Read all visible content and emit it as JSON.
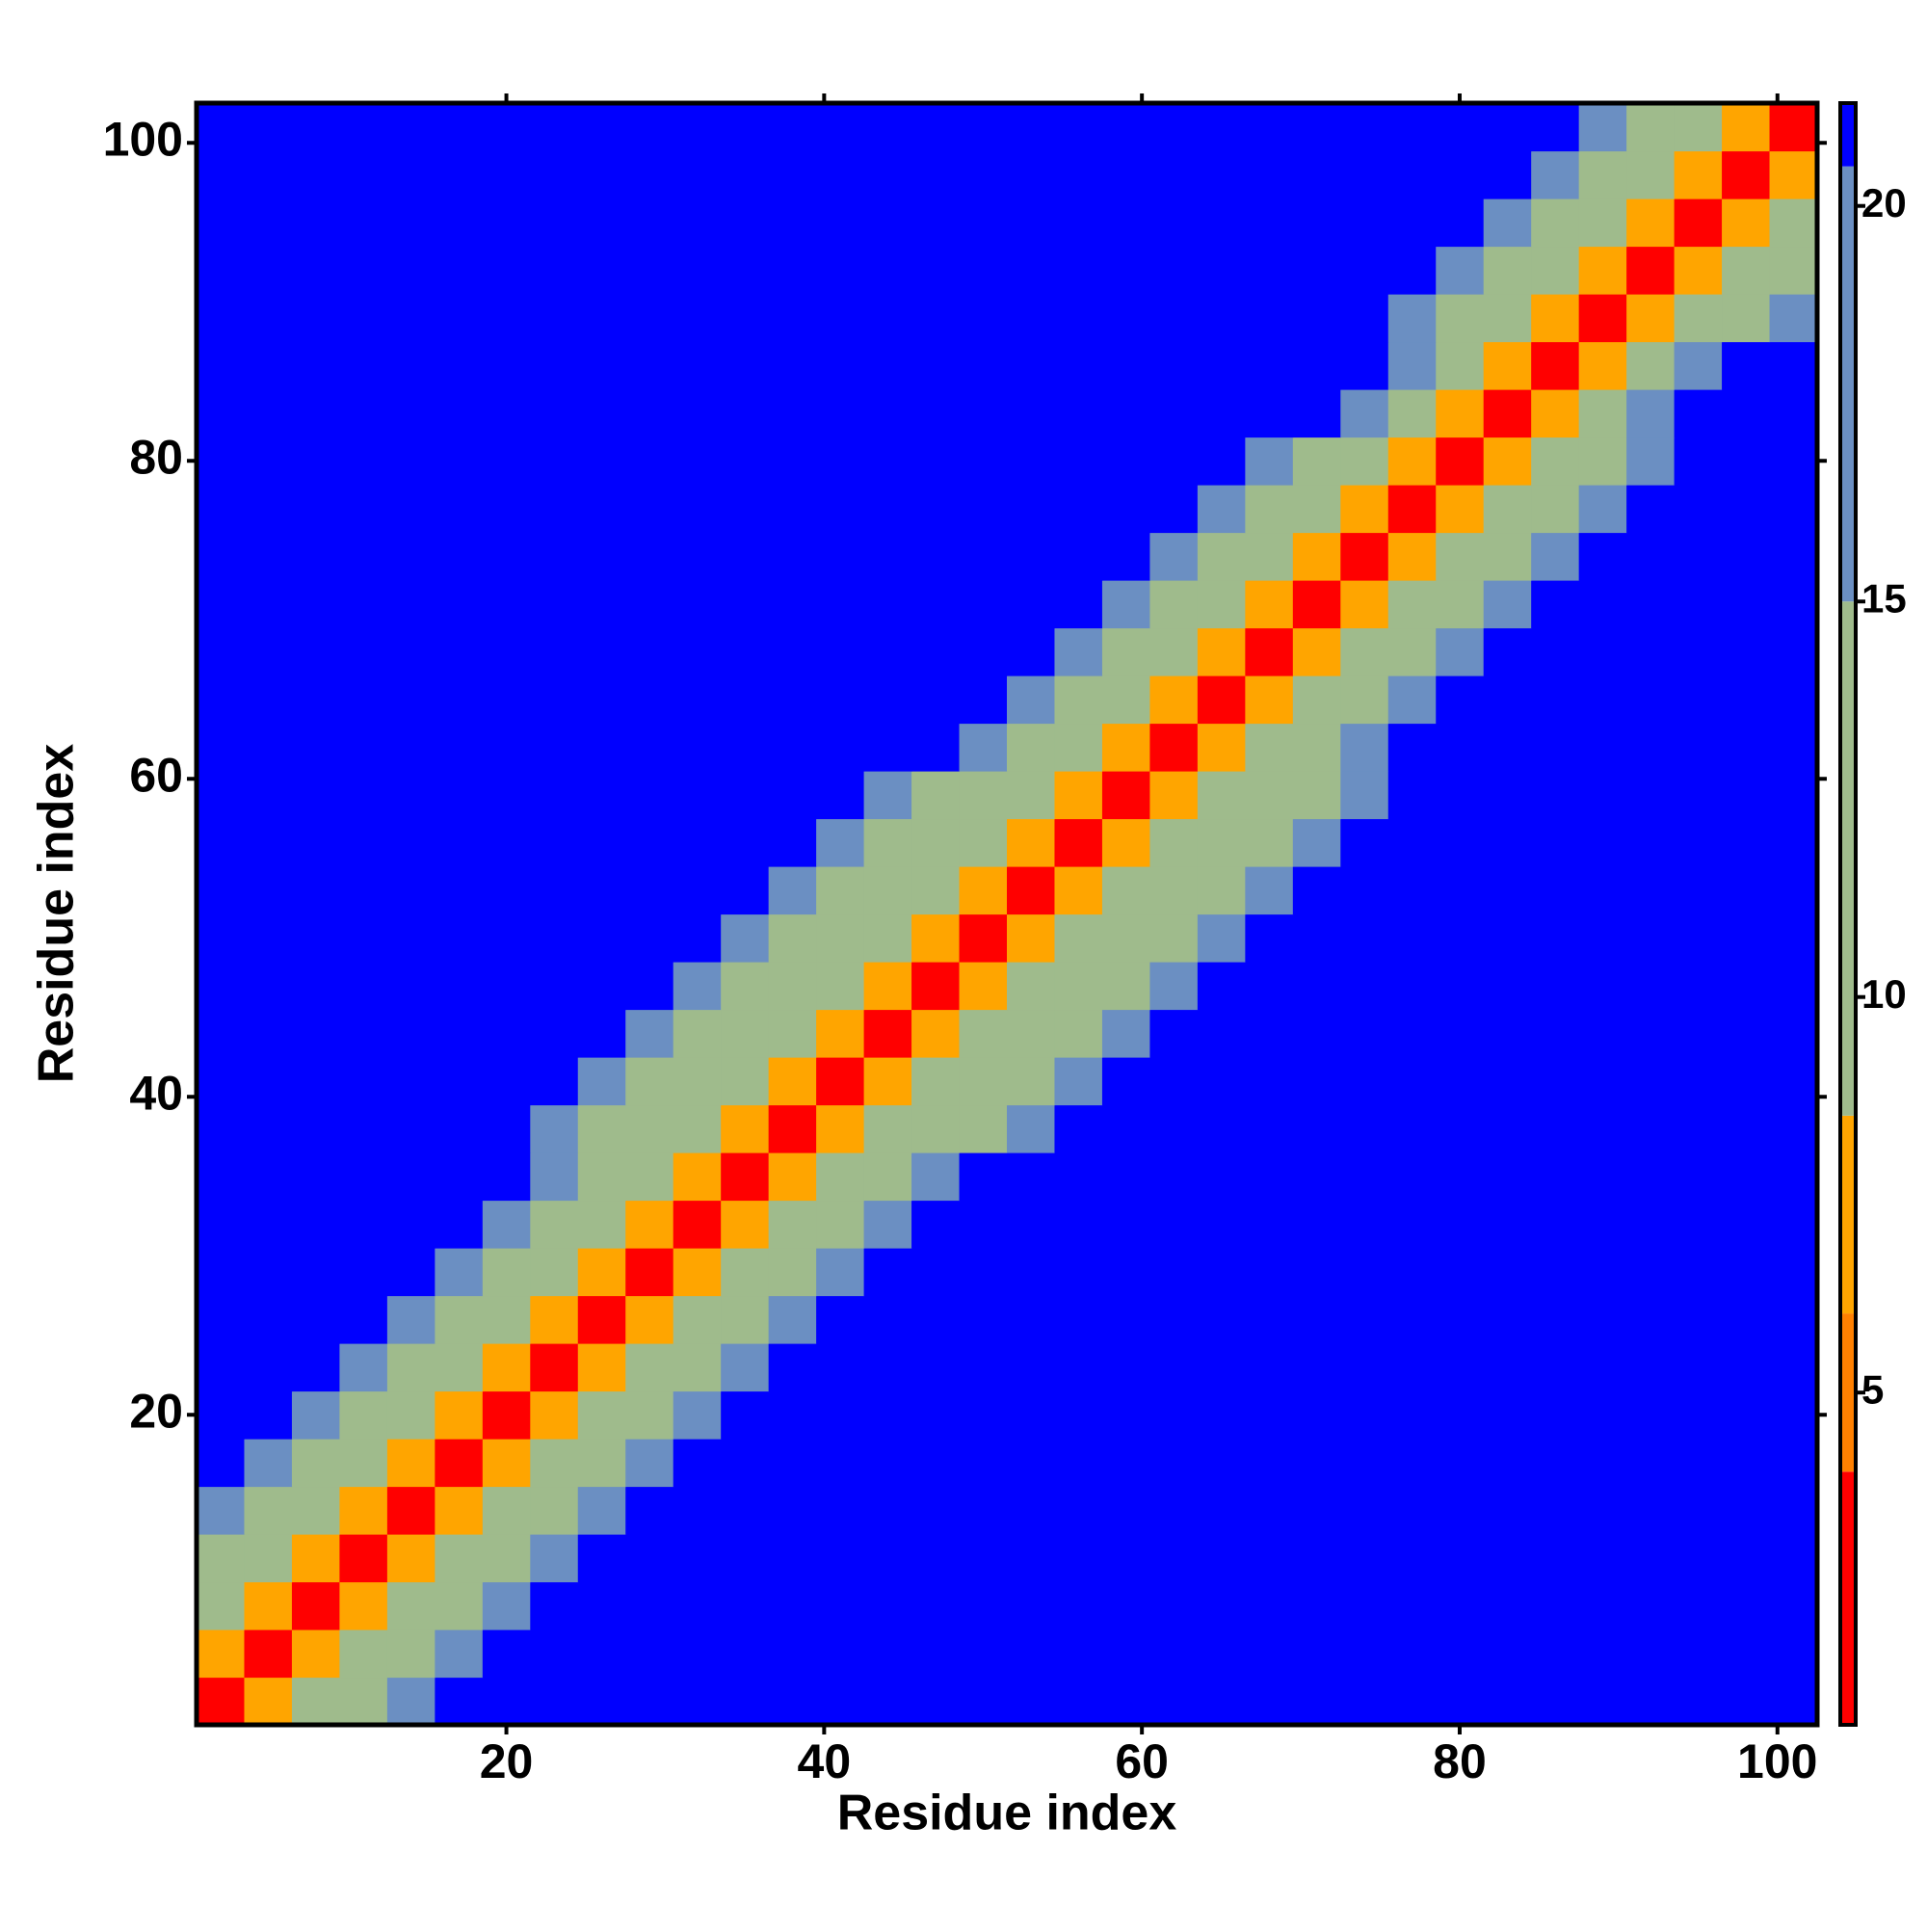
{
  "chart_data": {
    "type": "heatmap",
    "x_label": "Residue index",
    "y_label": "Residue index",
    "x": [
      2,
      5,
      8,
      11,
      14,
      17,
      20,
      23,
      26,
      29,
      32,
      35,
      38,
      41,
      44,
      47,
      50,
      53,
      56,
      59,
      62,
      65,
      68,
      71,
      74,
      77,
      80,
      83,
      86,
      89,
      92,
      95,
      98,
      101
    ],
    "y": [
      2,
      5,
      8,
      11,
      14,
      17,
      20,
      23,
      26,
      29,
      32,
      35,
      38,
      41,
      44,
      47,
      50,
      53,
      56,
      59,
      62,
      65,
      68,
      71,
      74,
      77,
      80,
      83,
      86,
      89,
      92,
      95,
      98,
      101
    ],
    "xlim": [
      0.5,
      102.5
    ],
    "ylim": [
      0.5,
      102.5
    ],
    "xticks": [
      20,
      40,
      60,
      80,
      100
    ],
    "yticks": [
      20,
      40,
      60,
      80,
      100
    ],
    "zlim": [
      0.8,
      21.3
    ],
    "zticks": [
      5,
      10,
      15,
      20
    ],
    "colorscale": [
      {
        "from": 0.8,
        "color": "#ff0000"
      },
      {
        "from": 4,
        "color": "#ff8000"
      },
      {
        "from": 6,
        "color": "#ffa500"
      },
      {
        "from": 8.5,
        "color": "#9fbb8c"
      },
      {
        "from": 15,
        "color": "#6b8fc2"
      },
      {
        "from": 20.5,
        "color": "#0000ff"
      }
    ],
    "z": [
      [
        2,
        6,
        10,
        13,
        17,
        22,
        22,
        22,
        22,
        22,
        22,
        22,
        22,
        22,
        22,
        22,
        22,
        22,
        22,
        22,
        22,
        22,
        22,
        22,
        22,
        22,
        22,
        22,
        22,
        22,
        22,
        22,
        22,
        22
      ],
      [
        6,
        2,
        6,
        10,
        13,
        17,
        22,
        22,
        22,
        22,
        22,
        22,
        22,
        22,
        22,
        22,
        22,
        22,
        22,
        22,
        22,
        22,
        22,
        22,
        22,
        22,
        22,
        22,
        22,
        22,
        22,
        22,
        22,
        22
      ],
      [
        10,
        6,
        2,
        6,
        10,
        13,
        17,
        22,
        22,
        22,
        22,
        22,
        22,
        22,
        22,
        22,
        22,
        22,
        22,
        22,
        22,
        22,
        22,
        22,
        22,
        22,
        22,
        22,
        22,
        22,
        22,
        22,
        22,
        22
      ],
      [
        13,
        10,
        6,
        2,
        6,
        10,
        13,
        17,
        22,
        22,
        22,
        22,
        22,
        22,
        22,
        22,
        22,
        22,
        22,
        22,
        22,
        22,
        22,
        22,
        22,
        22,
        22,
        22,
        22,
        22,
        22,
        22,
        22,
        22
      ],
      [
        17,
        13,
        10,
        6,
        2,
        6,
        10,
        13,
        17,
        22,
        22,
        22,
        22,
        22,
        22,
        22,
        22,
        22,
        22,
        22,
        22,
        22,
        22,
        22,
        22,
        22,
        22,
        22,
        22,
        22,
        22,
        22,
        22,
        22
      ],
      [
        22,
        17,
        13,
        10,
        6,
        2,
        6,
        10,
        13,
        17,
        22,
        22,
        22,
        22,
        22,
        22,
        22,
        22,
        22,
        22,
        22,
        22,
        22,
        22,
        22,
        22,
        22,
        22,
        22,
        22,
        22,
        22,
        22,
        22
      ],
      [
        22,
        22,
        17,
        13,
        10,
        6,
        2,
        6,
        10,
        13,
        17,
        22,
        22,
        22,
        22,
        22,
        22,
        22,
        22,
        22,
        22,
        22,
        22,
        22,
        22,
        22,
        22,
        22,
        22,
        22,
        22,
        22,
        22,
        22
      ],
      [
        22,
        22,
        22,
        17,
        13,
        10,
        6,
        2,
        6,
        10,
        13,
        17,
        22,
        22,
        22,
        22,
        22,
        22,
        22,
        22,
        22,
        22,
        22,
        22,
        22,
        22,
        22,
        22,
        22,
        22,
        22,
        22,
        22,
        22
      ],
      [
        22,
        22,
        22,
        22,
        17,
        13,
        10,
        6,
        2,
        6,
        10,
        13,
        17,
        22,
        22,
        22,
        22,
        22,
        22,
        22,
        22,
        22,
        22,
        22,
        22,
        22,
        22,
        22,
        22,
        22,
        22,
        22,
        22,
        22
      ],
      [
        22,
        22,
        22,
        22,
        22,
        17,
        13,
        10,
        6,
        2,
        6,
        10,
        13,
        17,
        22,
        22,
        22,
        22,
        22,
        22,
        22,
        22,
        22,
        22,
        22,
        22,
        22,
        22,
        22,
        22,
        22,
        22,
        22,
        22
      ],
      [
        22,
        22,
        22,
        22,
        22,
        22,
        17,
        13,
        10,
        6,
        2,
        6,
        10,
        13,
        17,
        22,
        22,
        22,
        22,
        22,
        22,
        22,
        22,
        22,
        22,
        22,
        22,
        22,
        22,
        22,
        22,
        22,
        22,
        22
      ],
      [
        22,
        22,
        22,
        22,
        22,
        22,
        22,
        17,
        13,
        10,
        6,
        2,
        6,
        10,
        13,
        17,
        22,
        22,
        22,
        22,
        22,
        22,
        22,
        22,
        22,
        22,
        22,
        22,
        22,
        22,
        22,
        22,
        22,
        22
      ],
      [
        22,
        22,
        22,
        22,
        22,
        22,
        22,
        17,
        14,
        12,
        9,
        6,
        2,
        6,
        9,
        12,
        14,
        17,
        22,
        22,
        22,
        22,
        22,
        22,
        22,
        22,
        22,
        22,
        22,
        22,
        22,
        22,
        22,
        22
      ],
      [
        22,
        22,
        22,
        22,
        22,
        22,
        22,
        22,
        17,
        14,
        12,
        9,
        6,
        2,
        6,
        9,
        12,
        14,
        17,
        22,
        22,
        22,
        22,
        22,
        22,
        22,
        22,
        22,
        22,
        22,
        22,
        22,
        22,
        22
      ],
      [
        22,
        22,
        22,
        22,
        22,
        22,
        22,
        22,
        22,
        17,
        14,
        12,
        9,
        6,
        2,
        6,
        9,
        12,
        14,
        17,
        22,
        22,
        22,
        22,
        22,
        22,
        22,
        22,
        22,
        22,
        22,
        22,
        22,
        22
      ],
      [
        22,
        22,
        22,
        22,
        22,
        22,
        22,
        22,
        22,
        22,
        17,
        14,
        12,
        9,
        6,
        2,
        6,
        9,
        12,
        14,
        17,
        22,
        22,
        22,
        22,
        22,
        22,
        22,
        22,
        22,
        22,
        22,
        22,
        22
      ],
      [
        22,
        22,
        22,
        22,
        22,
        22,
        22,
        22,
        22,
        22,
        22,
        17,
        14,
        12,
        9,
        6,
        2,
        6,
        9,
        12,
        14,
        17,
        22,
        22,
        22,
        22,
        22,
        22,
        22,
        22,
        22,
        22,
        22,
        22
      ],
      [
        22,
        22,
        22,
        22,
        22,
        22,
        22,
        22,
        22,
        22,
        22,
        22,
        17,
        14,
        12,
        9,
        6,
        2,
        6,
        9,
        12,
        14,
        17,
        22,
        22,
        22,
        22,
        22,
        22,
        22,
        22,
        22,
        22,
        22
      ],
      [
        22,
        22,
        22,
        22,
        22,
        22,
        22,
        22,
        22,
        22,
        22,
        22,
        22,
        17,
        14,
        12,
        9,
        6,
        2,
        6,
        9,
        12,
        14,
        17,
        22,
        22,
        22,
        22,
        22,
        22,
        22,
        22,
        22,
        22
      ],
      [
        22,
        22,
        22,
        22,
        22,
        22,
        22,
        22,
        22,
        22,
        22,
        22,
        22,
        22,
        17,
        14,
        12,
        9,
        6,
        2,
        6,
        9,
        12,
        14,
        17,
        22,
        22,
        22,
        22,
        22,
        22,
        22,
        22,
        22
      ],
      [
        22,
        22,
        22,
        22,
        22,
        22,
        22,
        22,
        22,
        22,
        22,
        22,
        22,
        22,
        22,
        22,
        17,
        13,
        10,
        6,
        2,
        6,
        10,
        13,
        17,
        22,
        22,
        22,
        22,
        22,
        22,
        22,
        22,
        22
      ],
      [
        22,
        22,
        22,
        22,
        22,
        22,
        22,
        22,
        22,
        22,
        22,
        22,
        22,
        22,
        22,
        22,
        22,
        17,
        13,
        10,
        6,
        2,
        6,
        10,
        13,
        17,
        22,
        22,
        22,
        22,
        22,
        22,
        22,
        22
      ],
      [
        22,
        22,
        22,
        22,
        22,
        22,
        22,
        22,
        22,
        22,
        22,
        22,
        22,
        22,
        22,
        22,
        22,
        22,
        17,
        13,
        10,
        6,
        2,
        6,
        10,
        13,
        17,
        22,
        22,
        22,
        22,
        22,
        22,
        22
      ],
      [
        22,
        22,
        22,
        22,
        22,
        22,
        22,
        22,
        22,
        22,
        22,
        22,
        22,
        22,
        22,
        22,
        22,
        22,
        22,
        17,
        13,
        10,
        6,
        2,
        6,
        10,
        13,
        17,
        22,
        22,
        22,
        22,
        22,
        22
      ],
      [
        22,
        22,
        22,
        22,
        22,
        22,
        22,
        22,
        22,
        22,
        22,
        22,
        22,
        22,
        22,
        22,
        22,
        22,
        22,
        22,
        17,
        13,
        10,
        6,
        2,
        6,
        10,
        13,
        17,
        22,
        22,
        22,
        22,
        22
      ],
      [
        22,
        22,
        22,
        22,
        22,
        22,
        22,
        22,
        22,
        22,
        22,
        22,
        22,
        22,
        22,
        22,
        22,
        22,
        22,
        22,
        22,
        17,
        13,
        10,
        6,
        2,
        6,
        10,
        13,
        17,
        22,
        22,
        22,
        22
      ],
      [
        22,
        22,
        22,
        22,
        22,
        22,
        22,
        22,
        22,
        22,
        22,
        22,
        22,
        22,
        22,
        22,
        22,
        22,
        22,
        22,
        22,
        22,
        17,
        13,
        10,
        6,
        2,
        6,
        10,
        13,
        17,
        22,
        22,
        22
      ],
      [
        22,
        22,
        22,
        22,
        22,
        22,
        22,
        22,
        22,
        22,
        22,
        22,
        22,
        22,
        22,
        22,
        22,
        22,
        22,
        22,
        22,
        22,
        22,
        22,
        16,
        10,
        6,
        2,
        6,
        10,
        16,
        22,
        22,
        22
      ],
      [
        22,
        22,
        22,
        22,
        22,
        22,
        22,
        22,
        22,
        22,
        22,
        22,
        22,
        22,
        22,
        22,
        22,
        22,
        22,
        22,
        22,
        22,
        22,
        22,
        22,
        16,
        10,
        6,
        2,
        6,
        10,
        16,
        22,
        22
      ],
      [
        22,
        22,
        22,
        22,
        22,
        22,
        22,
        22,
        22,
        22,
        22,
        22,
        22,
        22,
        22,
        22,
        22,
        22,
        22,
        22,
        22,
        22,
        22,
        22,
        22,
        17,
        13,
        10,
        6,
        2,
        6,
        10,
        13,
        17
      ],
      [
        22,
        22,
        22,
        22,
        22,
        22,
        22,
        22,
        22,
        22,
        22,
        22,
        22,
        22,
        22,
        22,
        22,
        22,
        22,
        22,
        22,
        22,
        22,
        22,
        22,
        22,
        17,
        13,
        10,
        6,
        2,
        6,
        10,
        13
      ],
      [
        22,
        22,
        22,
        22,
        22,
        22,
        22,
        22,
        22,
        22,
        22,
        22,
        22,
        22,
        22,
        22,
        22,
        22,
        22,
        22,
        22,
        22,
        22,
        22,
        22,
        22,
        22,
        17,
        13,
        10,
        6,
        2,
        6,
        10
      ],
      [
        22,
        22,
        22,
        22,
        22,
        22,
        22,
        22,
        22,
        22,
        22,
        22,
        22,
        22,
        22,
        22,
        22,
        22,
        22,
        22,
        22,
        22,
        22,
        22,
        22,
        22,
        22,
        22,
        17,
        13,
        10,
        6,
        2,
        6
      ],
      [
        22,
        22,
        22,
        22,
        22,
        22,
        22,
        22,
        22,
        22,
        22,
        22,
        22,
        22,
        22,
        22,
        22,
        22,
        22,
        22,
        22,
        22,
        22,
        22,
        22,
        22,
        22,
        22,
        22,
        17,
        13,
        10,
        6,
        2
      ]
    ]
  }
}
